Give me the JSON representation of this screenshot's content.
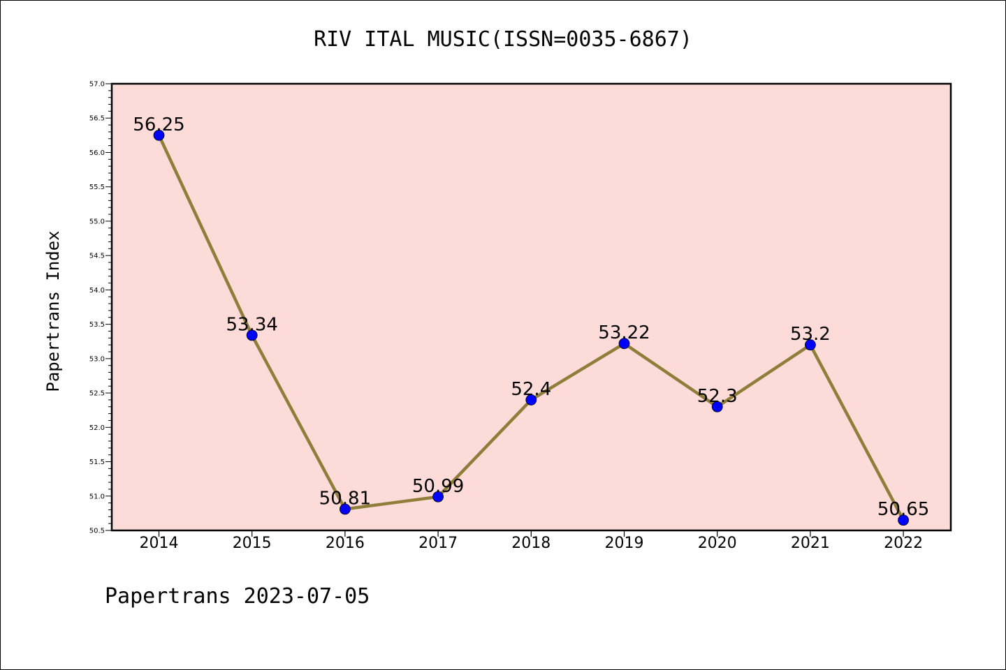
{
  "chart_data": {
    "type": "line",
    "title": "RIV ITAL MUSIC(ISSN=0035-6867)",
    "ylabel": "Papertrans Index",
    "xlabel": "",
    "footer": "Papertrans 2023-07-05",
    "x": [
      "2014",
      "2015",
      "2016",
      "2017",
      "2018",
      "2019",
      "2020",
      "2021",
      "2022"
    ],
    "series": [
      {
        "values": [
          56.25,
          53.34,
          50.81,
          50.99,
          52.4,
          53.22,
          52.3,
          53.2,
          50.65
        ],
        "labels": [
          "56.25",
          "53.34",
          "50.81",
          "50.99",
          "52.4",
          "53.22",
          "52.3",
          "53.2",
          "50.65"
        ]
      }
    ],
    "ylim": [
      50.5,
      57.0
    ],
    "yticks": [
      "50.5",
      "51.0",
      "51.5",
      "52.0",
      "52.5",
      "53.0",
      "53.5",
      "54.0",
      "54.5",
      "55.0",
      "55.5",
      "56.0",
      "56.5",
      "57.0"
    ],
    "grid": false,
    "colors": {
      "plot_background": "#fddbd8",
      "line": "#8f7e3a",
      "marker": "#0000ff"
    }
  }
}
